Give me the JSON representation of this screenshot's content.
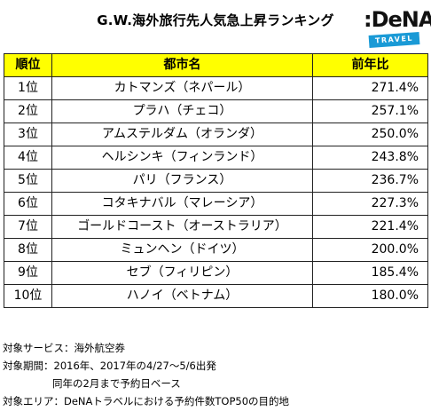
{
  "title": "G.W.海外旅行先人気急上昇ランキング",
  "logo": {
    "main": ":DeNA",
    "badge": "TRAVEL"
  },
  "table": {
    "headers": {
      "rank": "順位",
      "city": "都市名",
      "ratio": "前年比"
    },
    "rows": [
      {
        "rank": "1位",
        "city": "カトマンズ（ネパール）",
        "ratio": "271.4%"
      },
      {
        "rank": "2位",
        "city": "プラハ（チェコ）",
        "ratio": "257.1%"
      },
      {
        "rank": "3位",
        "city": "アムステルダム（オランダ）",
        "ratio": "250.0%"
      },
      {
        "rank": "4位",
        "city": "ヘルシンキ（フィンランド）",
        "ratio": "243.8%"
      },
      {
        "rank": "5位",
        "city": "パリ（フランス）",
        "ratio": "236.7%"
      },
      {
        "rank": "6位",
        "city": "コタキナバル（マレーシア）",
        "ratio": "227.3%"
      },
      {
        "rank": "7位",
        "city": "ゴールドコースト（オーストラリア）",
        "ratio": "221.4%"
      },
      {
        "rank": "8位",
        "city": "ミュンヘン（ドイツ）",
        "ratio": "200.0%"
      },
      {
        "rank": "9位",
        "city": "セブ（フィリピン）",
        "ratio": "185.4%"
      },
      {
        "rank": "10位",
        "city": "ハノイ（ベトナム）",
        "ratio": "180.0%"
      }
    ]
  },
  "notes": {
    "service": "対象サービス：海外航空券",
    "period": "対象期間：2016年、2017年の4/27～5/6出発",
    "period_basis": "同年の2月まで予約日ベース",
    "area": "対象エリア：DeNAトラベルにおける予約件数TOP50の目的地"
  },
  "colors": {
    "header_bg": "#ffff00",
    "badge_bg": "#1a9ad6"
  }
}
